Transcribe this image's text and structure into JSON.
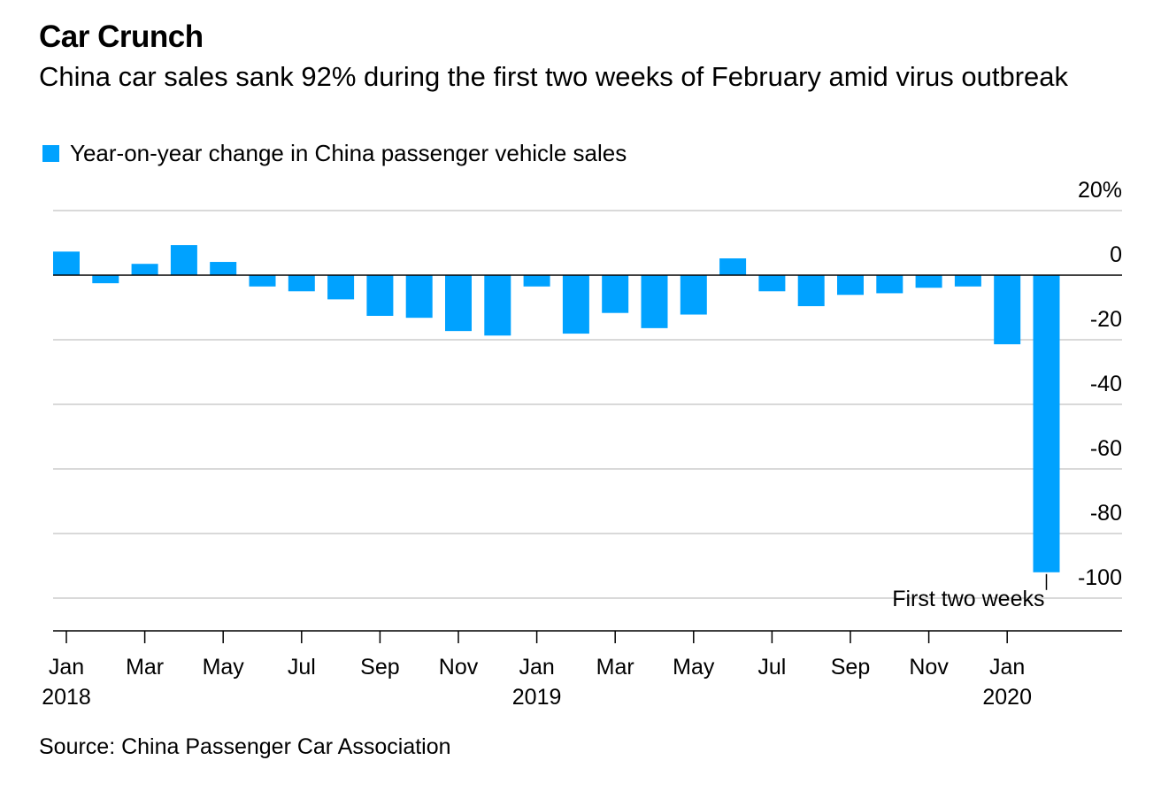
{
  "title": "Car Crunch",
  "subtitle": "China car sales sank 92% during the first two weeks of February amid virus outbreak",
  "source": "Source: China Passenger Car Association",
  "colors": {
    "bar": "#00a2ff",
    "grid": "#d9d9d9",
    "axis": "#000000"
  },
  "chart_data": {
    "type": "bar",
    "title": "Car Crunch",
    "subtitle": "China car sales sank 92% during the first two weeks of February amid virus outbreak",
    "series": [
      {
        "name": "Year-on-year change in China passenger vehicle sales",
        "values": [
          7.3,
          -2.5,
          3.5,
          9.3,
          4.1,
          -3.5,
          -5,
          -7.5,
          -12.6,
          -13.2,
          -17.3,
          -18.7,
          -3.5,
          -18.1,
          -11.7,
          -16.4,
          -12.2,
          5.2,
          -5,
          -9.6,
          -6.1,
          -5.6,
          -3.9,
          -3.5,
          -21.4,
          -92
        ]
      }
    ],
    "categories": [
      "2018-01",
      "2018-02",
      "2018-03",
      "2018-04",
      "2018-05",
      "2018-06",
      "2018-07",
      "2018-08",
      "2018-09",
      "2018-10",
      "2018-11",
      "2018-12",
      "2019-01",
      "2019-02",
      "2019-03",
      "2019-04",
      "2019-05",
      "2019-06",
      "2019-07",
      "2019-08",
      "2019-09",
      "2019-10",
      "2019-11",
      "2019-12",
      "2020-01",
      "2020-02"
    ],
    "x_tick_labels": [
      {
        "index": 0,
        "month": "Jan",
        "year": "2018"
      },
      {
        "index": 2,
        "month": "Mar",
        "year": ""
      },
      {
        "index": 4,
        "month": "May",
        "year": ""
      },
      {
        "index": 6,
        "month": "Jul",
        "year": ""
      },
      {
        "index": 8,
        "month": "Sep",
        "year": ""
      },
      {
        "index": 10,
        "month": "Nov",
        "year": ""
      },
      {
        "index": 12,
        "month": "Jan",
        "year": "2019"
      },
      {
        "index": 14,
        "month": "Mar",
        "year": ""
      },
      {
        "index": 16,
        "month": "May",
        "year": ""
      },
      {
        "index": 18,
        "month": "Jul",
        "year": ""
      },
      {
        "index": 20,
        "month": "Sep",
        "year": ""
      },
      {
        "index": 22,
        "month": "Nov",
        "year": ""
      },
      {
        "index": 24,
        "month": "Jan",
        "year": "2020"
      }
    ],
    "y_ticks": [
      20,
      0,
      -20,
      -40,
      -60,
      -80,
      -100
    ],
    "y_tick_labels": [
      "20%",
      "0",
      "-20",
      "-40",
      "-60",
      "-80",
      "-100"
    ],
    "ylim": [
      -110,
      20
    ],
    "grid": true,
    "legend_position": "top-left",
    "annotations": [
      {
        "text": "First two weeks",
        "category": "2020-02"
      }
    ]
  }
}
